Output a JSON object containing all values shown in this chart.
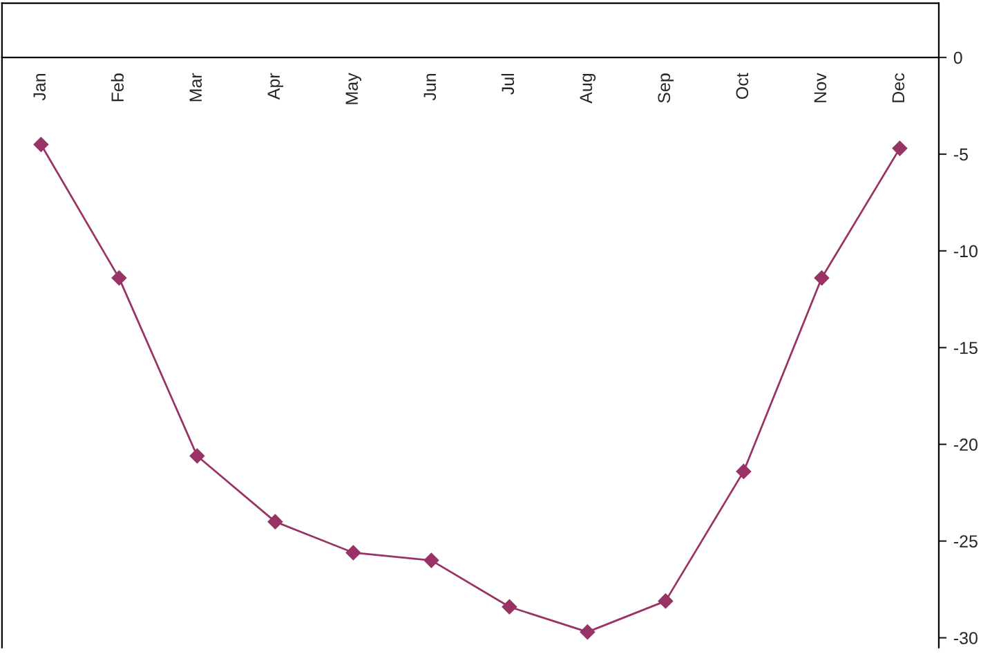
{
  "chart_data": {
    "type": "line",
    "categories": [
      "Jan",
      "Feb",
      "Mar",
      "Apr",
      "May",
      "Jun",
      "Jul",
      "Aug",
      "Sep",
      "Oct",
      "Nov",
      "Dec"
    ],
    "series": [
      {
        "color": "#993366",
        "values": [
          -4.5,
          -11.4,
          -20.6,
          -24.0,
          -25.6,
          -26.0,
          -28.4,
          -29.7,
          -28.1,
          -21.4,
          -11.4,
          -4.7
        ]
      }
    ],
    "ylim": [
      -30.5,
      2.8
    ],
    "yticks": [
      0,
      -5,
      -10,
      -15,
      -20,
      -25,
      -30
    ],
    "marker": "diamond",
    "line_style": "solid",
    "grid": false
  }
}
